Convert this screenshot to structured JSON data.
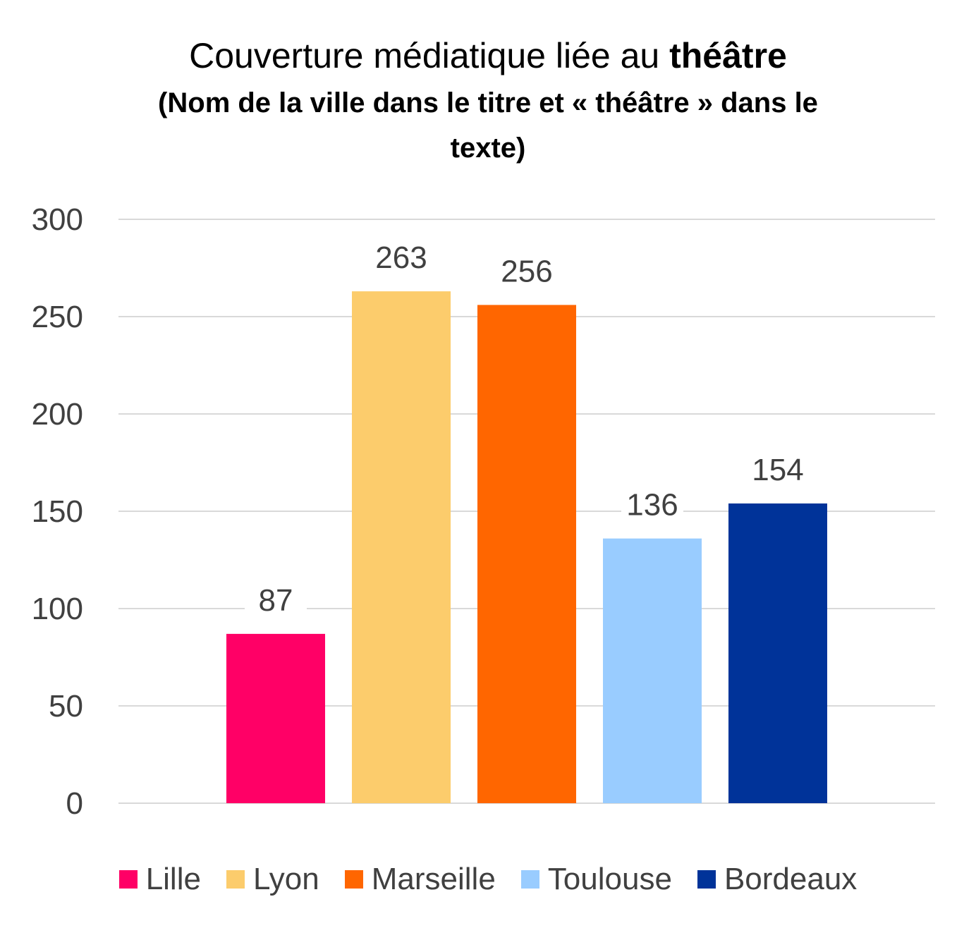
{
  "chart_data": {
    "type": "bar",
    "title": {
      "regular": "Couverture médiatique liée au ",
      "bold": "théâtre",
      "subtitle": "(Nom de la ville dans le titre et « théâtre » dans le texte)"
    },
    "categories": [
      "Lille",
      "Lyon",
      "Marseille",
      "Toulouse",
      "Bordeaux"
    ],
    "values": [
      87,
      263,
      256,
      136,
      154
    ],
    "colors": [
      "#ff0066",
      "#fccc6c",
      "#ff6600",
      "#99ccff",
      "#003399"
    ],
    "y_ticks": [
      "0",
      "50",
      "100",
      "150",
      "200",
      "250",
      "300"
    ],
    "ylim": [
      0,
      300
    ],
    "grid": true,
    "data_labels": true,
    "legend_position": "bottom"
  }
}
